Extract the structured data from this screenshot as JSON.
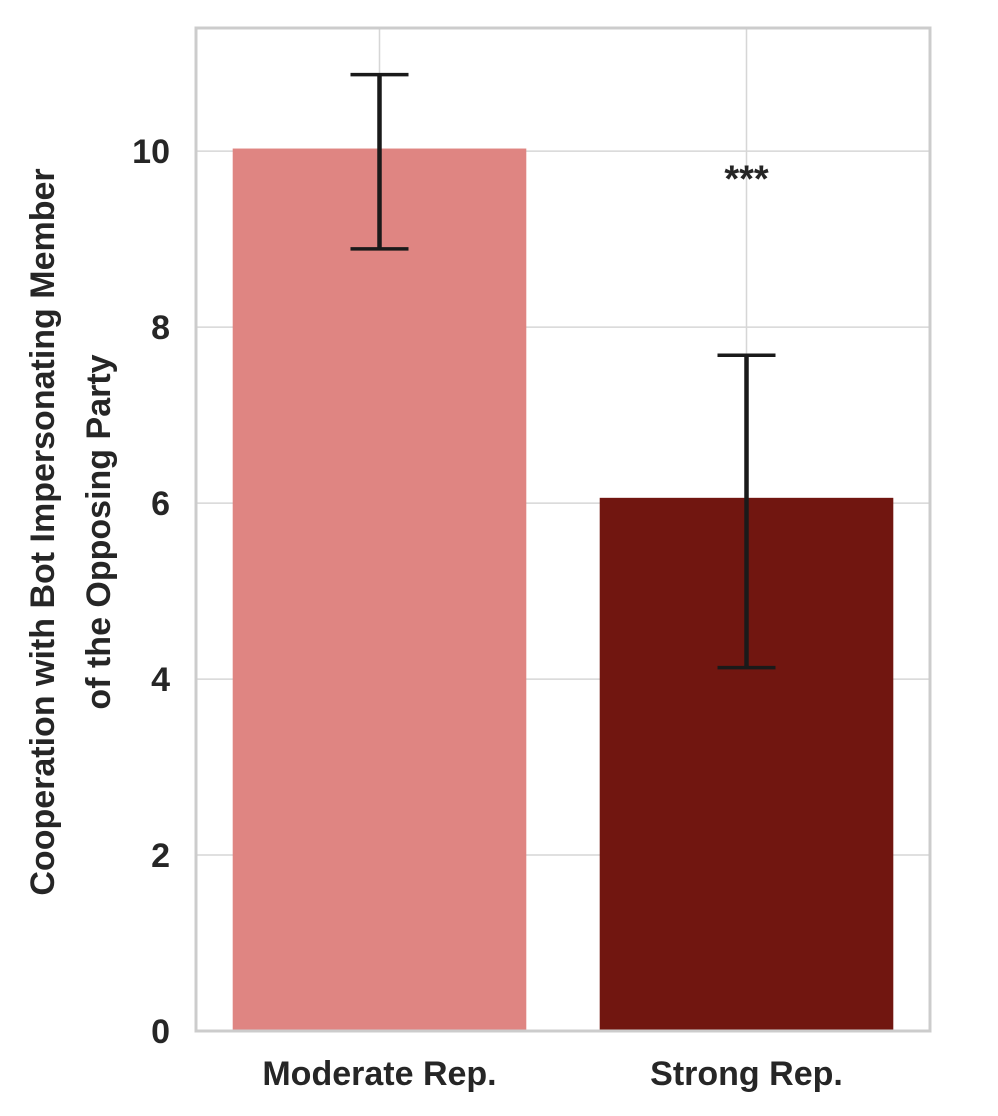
{
  "chart_data": {
    "type": "bar",
    "title": "",
    "xlabel": "",
    "ylabel_lines": [
      "Cooperation with Bot Impersonating Member",
      "of the Opposing Party"
    ],
    "categories": [
      "Moderate Rep.",
      "Strong Rep."
    ],
    "values": [
      10.03,
      6.06
    ],
    "error_low": [
      8.89,
      4.13
    ],
    "error_high": [
      10.87,
      7.68
    ],
    "colors": [
      "#df8582",
      "#711610"
    ],
    "ylim": [
      0,
      11.4
    ],
    "yticks": [
      0,
      2,
      4,
      6,
      8,
      10
    ],
    "ytick_labels": [
      "0",
      "2",
      "4",
      "6",
      "8",
      "10"
    ],
    "grid": true,
    "annotations": [
      {
        "text": "***",
        "category": "Strong Rep.",
        "y": 9.7
      }
    ]
  }
}
